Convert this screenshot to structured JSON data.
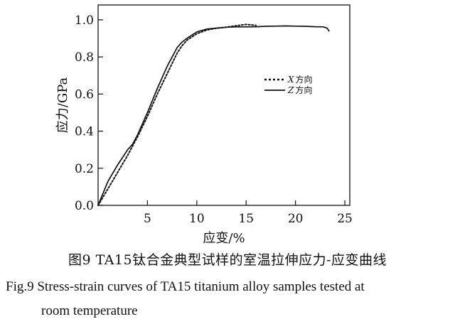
{
  "chart_data": {
    "type": "line",
    "title": "",
    "xlabel": "应变/%",
    "ylabel": "应力/GPa",
    "xlim": [
      0,
      25.5
    ],
    "ylim": [
      0,
      1.08
    ],
    "xticks": [
      5,
      10,
      15,
      20,
      25
    ],
    "yticks": [
      0.0,
      0.2,
      0.4,
      0.6,
      0.8,
      1.0
    ],
    "ytick_labels": [
      "0.0",
      "0.2",
      "0.4",
      "0.6",
      "0.8",
      "1.0"
    ],
    "grid": false,
    "legend": "right",
    "series": [
      {
        "name": "X 方向",
        "legend_letter": "X",
        "legend_text": "方向",
        "style": "dotted",
        "color": "#111111",
        "x": [
          0.0,
          1.0,
          2.0,
          3.0,
          4.0,
          5.0,
          6.0,
          7.0,
          8.0,
          8.5,
          9.0,
          10.0,
          11.0,
          12.0,
          13.0,
          14.0,
          15.0,
          16.0
        ],
        "y": [
          0.0,
          0.09,
          0.18,
          0.27,
          0.37,
          0.48,
          0.6,
          0.71,
          0.82,
          0.86,
          0.89,
          0.925,
          0.945,
          0.955,
          0.96,
          0.968,
          0.975,
          0.97
        ]
      },
      {
        "name": "Z 方向",
        "legend_letter": "Z",
        "legend_text": "方向",
        "style": "solid",
        "color": "#111111",
        "x": [
          0.0,
          1.0,
          2.0,
          3.0,
          3.5,
          4.0,
          5.0,
          6.0,
          7.0,
          8.0,
          8.5,
          9.0,
          10.0,
          11.0,
          12.0,
          13.0,
          14.0,
          15.0,
          16.0,
          17.0,
          18.0,
          19.0,
          20.0,
          21.0,
          22.0,
          22.8,
          23.2,
          23.4
        ],
        "y": [
          0.0,
          0.13,
          0.22,
          0.3,
          0.33,
          0.38,
          0.5,
          0.63,
          0.75,
          0.85,
          0.88,
          0.9,
          0.935,
          0.95,
          0.955,
          0.96,
          0.962,
          0.962,
          0.963,
          0.965,
          0.966,
          0.967,
          0.966,
          0.965,
          0.963,
          0.962,
          0.955,
          0.94
        ]
      }
    ]
  },
  "caption": {
    "zh": "图9 TA15钛合金典型试样的室温拉伸应力-应变曲线",
    "en_line1": "Fig.9 Stress-strain curves of TA15 titanium alloy samples tested at",
    "en_line2": "room temperature"
  }
}
